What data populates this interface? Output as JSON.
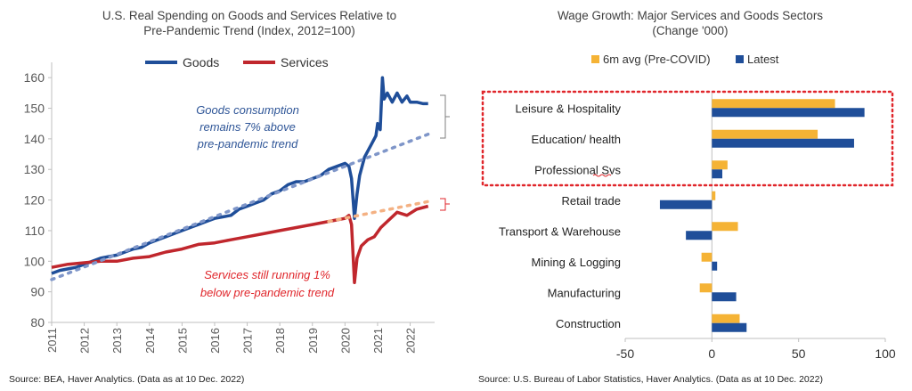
{
  "left_chart": {
    "title_line1": "U.S. Real Spending on Goods and Services Relative to",
    "title_line2": "Pre-Pandemic Trend (Index, 2012=100)",
    "legend": [
      {
        "label": "Goods",
        "color": "#1f4e99"
      },
      {
        "label": "Services",
        "color": "#c0272d"
      }
    ],
    "annotation_goods": [
      "Goods consumption",
      "remains 7% above",
      "pre-pandemic trend"
    ],
    "annotation_services": [
      "Services still running 1%",
      "below pre-pandemic trend"
    ],
    "source": "Source: BEA, Haver Analytics. (Data as at 10 Dec. 2022)"
  },
  "right_chart": {
    "title_line1": "Wage Growth: Major Services and Goods Sectors",
    "title_line2": "(Change '000)",
    "source": "Source: U.S. Bureau of Labor Statistics, Haver Analytics. (Data as at 10 Dec. 2022)"
  },
  "chart_data": [
    {
      "type": "line",
      "title": "U.S. Real Spending on Goods and Services Relative to Pre-Pandemic Trend (Index, 2012=100)",
      "xlim": [
        2011,
        2022.75
      ],
      "ylim": [
        80,
        165
      ],
      "x_ticks": [
        "2011",
        "2012",
        "2013",
        "2014",
        "2015",
        "2016",
        "2017",
        "2018",
        "2019",
        "2020",
        "2021",
        "2022"
      ],
      "y_ticks": [
        80,
        90,
        100,
        110,
        120,
        130,
        140,
        150,
        160
      ],
      "grid": false,
      "legend_position": "top",
      "series": [
        {
          "name": "Goods",
          "color": "#1f4e99",
          "x": [
            2011.0,
            2011.25,
            2011.5,
            2011.75,
            2012.0,
            2012.25,
            2012.5,
            2012.75,
            2013.0,
            2013.25,
            2013.5,
            2013.75,
            2014.0,
            2014.25,
            2014.5,
            2014.75,
            2015.0,
            2015.25,
            2015.5,
            2015.75,
            2016.0,
            2016.25,
            2016.5,
            2016.75,
            2017.0,
            2017.25,
            2017.5,
            2017.75,
            2018.0,
            2018.25,
            2018.5,
            2018.75,
            2019.0,
            2019.25,
            2019.5,
            2019.75,
            2020.0,
            2020.12,
            2020.2,
            2020.29,
            2020.37,
            2020.45,
            2020.6,
            2020.8,
            2020.95,
            2021.0,
            2021.08,
            2021.15,
            2021.2,
            2021.3,
            2021.45,
            2021.6,
            2021.75,
            2021.9,
            2022.0,
            2022.2,
            2022.4,
            2022.55
          ],
          "y": [
            96,
            97,
            97.5,
            98,
            99,
            100,
            101,
            101.5,
            102,
            103,
            104,
            104.5,
            106,
            107,
            108,
            109,
            110,
            111,
            112,
            113,
            114,
            114.5,
            115,
            117,
            118,
            119,
            120,
            122,
            123,
            125,
            126,
            126,
            127,
            128,
            130,
            131,
            132,
            131,
            127,
            114,
            122,
            128,
            134,
            138,
            141,
            145,
            143,
            160,
            153,
            155,
            152,
            155,
            152,
            154,
            152,
            152,
            151.5,
            151.5
          ]
        },
        {
          "name": "Services",
          "color": "#c0272d",
          "x": [
            2011.0,
            2011.5,
            2012.0,
            2012.5,
            2013.0,
            2013.5,
            2014.0,
            2014.5,
            2015.0,
            2015.5,
            2016.0,
            2016.5,
            2017.0,
            2017.5,
            2018.0,
            2018.5,
            2019.0,
            2019.5,
            2020.0,
            2020.12,
            2020.2,
            2020.29,
            2020.37,
            2020.5,
            2020.7,
            2020.9,
            2021.1,
            2021.3,
            2021.6,
            2021.9,
            2022.2,
            2022.55
          ],
          "y": [
            98,
            99,
            99.5,
            100,
            100,
            101,
            101.5,
            103,
            104,
            105.5,
            106,
            107,
            108,
            109,
            110,
            111,
            112,
            113,
            114,
            115,
            112,
            93,
            101,
            105,
            107,
            108,
            111,
            113,
            116,
            115,
            117,
            118
          ]
        },
        {
          "name": "",
          "style": "dotted",
          "color": "#7f96c9",
          "x": [
            2011.0,
            2022.55
          ],
          "y": [
            94,
            141.5
          ]
        },
        {
          "name": "",
          "style": "dotted",
          "color": "#f4b183",
          "x": [
            2019.5,
            2022.55
          ],
          "y": [
            113,
            119.5
          ]
        }
      ]
    },
    {
      "type": "bar",
      "orientation": "horizontal",
      "title": "Wage Growth: Major Services and Goods Sectors (Change '000)",
      "categories": [
        "Leisure & Hospitality",
        "Education/    health",
        "Professional Svs",
        "Retail trade",
        "Transport & Warehouse",
        "Mining & Logging",
        "Manufacturing",
        "Construction"
      ],
      "xlim": [
        -50,
        100
      ],
      "x_ticks": [
        -50,
        0,
        50,
        100
      ],
      "legend_position": "top",
      "highlight_categories": [
        "Leisure & Hospitality",
        "Education/    health",
        "Professional Svs"
      ],
      "series": [
        {
          "name": "6m avg (Pre-COVID)",
          "color": "#f5b335",
          "values": [
            71,
            61,
            9,
            2,
            15,
            -6,
            -7,
            16
          ]
        },
        {
          "name": "Latest",
          "color": "#1f4e99",
          "values": [
            88,
            82,
            6,
            -30,
            -15,
            3,
            14,
            20
          ]
        }
      ]
    }
  ]
}
